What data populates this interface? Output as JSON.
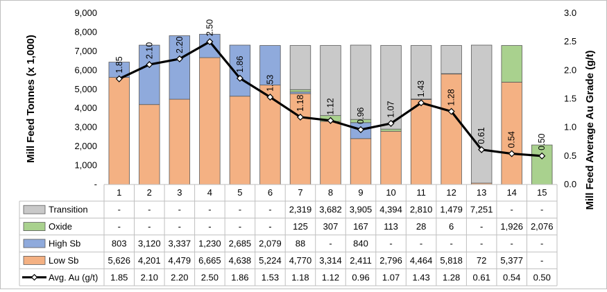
{
  "chart_data": {
    "type": "bar",
    "stacked": true,
    "categories": [
      "1",
      "2",
      "3",
      "4",
      "5",
      "6",
      "7",
      "8",
      "9",
      "10",
      "11",
      "12",
      "13",
      "14",
      "15"
    ],
    "series": [
      {
        "name": "Low Sb",
        "color": "#f4b183",
        "values": [
          5626,
          4201,
          4479,
          6665,
          4638,
          5224,
          4770,
          3314,
          2411,
          2796,
          4464,
          5818,
          72,
          5377,
          null
        ]
      },
      {
        "name": "High Sb",
        "color": "#8faadc",
        "values": [
          803,
          3120,
          3337,
          1230,
          2685,
          2079,
          88,
          null,
          840,
          null,
          null,
          null,
          null,
          null,
          null
        ]
      },
      {
        "name": "Oxide",
        "color": "#a9d18e",
        "values": [
          null,
          null,
          null,
          null,
          null,
          null,
          125,
          307,
          167,
          113,
          28,
          6,
          null,
          1926,
          2076
        ]
      },
      {
        "name": "Transition",
        "color": "#c9c9c9",
        "values": [
          null,
          null,
          null,
          null,
          null,
          null,
          2319,
          3682,
          3905,
          4394,
          2810,
          1479,
          7251,
          null,
          null
        ]
      }
    ],
    "line_series": {
      "name": "Avg. Au (g/t)",
      "axis": "right",
      "color": "#000000",
      "values": [
        1.85,
        2.1,
        2.2,
        2.5,
        1.86,
        1.53,
        1.18,
        1.12,
        0.96,
        1.07,
        1.43,
        1.28,
        0.61,
        0.54,
        0.5
      ]
    },
    "line_labels": [
      "1.85",
      "2.10",
      "2.20",
      "2.50",
      "1.86",
      "1.53",
      "1.18",
      "1.12",
      "0.96",
      "1.07",
      "1.43",
      "1.28",
      "0.61",
      "0.54",
      "0.50"
    ],
    "ylabel": "Mill Feed Tonnes (x 1,000)",
    "y2label": "Mill Feed Average Au Grade (g/t)",
    "ylim": [
      0,
      9000
    ],
    "y2lim": [
      0,
      3.0
    ],
    "y_ticks": [
      {
        "v": 0,
        "label": "-"
      },
      {
        "v": 1000,
        "label": "1,000"
      },
      {
        "v": 2000,
        "label": "2,000"
      },
      {
        "v": 3000,
        "label": "3,000"
      },
      {
        "v": 4000,
        "label": "4,000"
      },
      {
        "v": 5000,
        "label": "5,000"
      },
      {
        "v": 6000,
        "label": "6,000"
      },
      {
        "v": 7000,
        "label": "7,000"
      },
      {
        "v": 8000,
        "label": "8,000"
      },
      {
        "v": 9000,
        "label": "9,000"
      }
    ],
    "y2_ticks": [
      {
        "v": 0,
        "label": "0.0"
      },
      {
        "v": 0.5,
        "label": "0.5"
      },
      {
        "v": 1.0,
        "label": "1.0"
      },
      {
        "v": 1.5,
        "label": "1.5"
      },
      {
        "v": 2.0,
        "label": "2.0"
      },
      {
        "v": 2.5,
        "label": "2.5"
      },
      {
        "v": 3.0,
        "label": "3.0"
      }
    ],
    "data_table": {
      "rows": [
        {
          "name": "Transition",
          "color": "#c9c9c9",
          "key": "box",
          "cells": [
            "-",
            "-",
            "-",
            "-",
            "-",
            "-",
            "2,319",
            "3,682",
            "3,905",
            "4,394",
            "2,810",
            "1,479",
            "7,251",
            "-",
            "-"
          ]
        },
        {
          "name": "Oxide",
          "color": "#a9d18e",
          "key": "box",
          "cells": [
            "-",
            "-",
            "-",
            "-",
            "-",
            "-",
            "125",
            "307",
            "167",
            "113",
            "28",
            "6",
            "-",
            "1,926",
            "2,076"
          ]
        },
        {
          "name": "High Sb",
          "color": "#8faadc",
          "key": "box",
          "cells": [
            "803",
            "3,120",
            "3,337",
            "1,230",
            "2,685",
            "2,079",
            "88",
            "-",
            "840",
            "-",
            "-",
            "-",
            "-",
            "-",
            "-"
          ]
        },
        {
          "name": "Low Sb",
          "color": "#f4b183",
          "key": "box",
          "cells": [
            "5,626",
            "4,201",
            "4,479",
            "6,665",
            "4,638",
            "5,224",
            "4,770",
            "3,314",
            "2,411",
            "2,796",
            "4,464",
            "5,818",
            "72",
            "5,377",
            "-"
          ]
        },
        {
          "name": "Avg. Au (g/t)",
          "color": "#000000",
          "key": "line",
          "cells": [
            "1.85",
            "2.10",
            "2.20",
            "2.50",
            "1.86",
            "1.53",
            "1.18",
            "1.12",
            "0.96",
            "1.07",
            "1.43",
            "1.28",
            "0.61",
            "0.54",
            "0.50"
          ]
        }
      ]
    },
    "gridlines": false,
    "legend": "in data table"
  }
}
